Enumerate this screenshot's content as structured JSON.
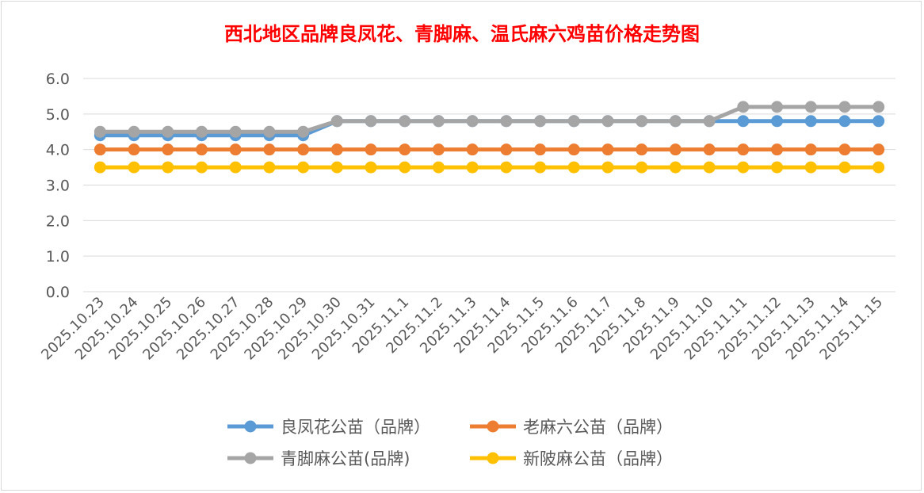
{
  "chart_data": {
    "type": "line",
    "title": "西北地区品牌良凤花、青脚麻、温氏麻六鸡苗价格走势图",
    "xlabel": "",
    "ylabel": "",
    "ylim": [
      0,
      6
    ],
    "yticks": [
      "0.0",
      "1.0",
      "2.0",
      "3.0",
      "4.0",
      "5.0",
      "6.0"
    ],
    "grid": true,
    "legend_position": "bottom",
    "categories": [
      "2025.10.23",
      "2025.10.24",
      "2025.10.25",
      "2025.10.26",
      "2025.10.27",
      "2025.10.28",
      "2025.10.29",
      "2025.10.30",
      "2025.10.31",
      "2025.11.1",
      "2025.11.2",
      "2025.11.3",
      "2025.11.4",
      "2025.11.5",
      "2025.11.6",
      "2025.11.7",
      "2025.11.8",
      "2025.11.9",
      "2025.11.10",
      "2025.11.11",
      "2025.11.12",
      "2025.11.13",
      "2025.11.14",
      "2025.11.15"
    ],
    "series": [
      {
        "name": "良凤花公苗（品牌）",
        "color": "#5b9bd5",
        "values": [
          4.4,
          4.4,
          4.4,
          4.4,
          4.4,
          4.4,
          4.4,
          4.8,
          4.8,
          4.8,
          4.8,
          4.8,
          4.8,
          4.8,
          4.8,
          4.8,
          4.8,
          4.8,
          4.8,
          4.8,
          4.8,
          4.8,
          4.8,
          4.8
        ]
      },
      {
        "name": "老麻六公苗（品牌）",
        "color": "#ed7d31",
        "values": [
          4.0,
          4.0,
          4.0,
          4.0,
          4.0,
          4.0,
          4.0,
          4.0,
          4.0,
          4.0,
          4.0,
          4.0,
          4.0,
          4.0,
          4.0,
          4.0,
          4.0,
          4.0,
          4.0,
          4.0,
          4.0,
          4.0,
          4.0,
          4.0
        ]
      },
      {
        "name": "青脚麻公苗(品牌)",
        "color": "#a5a5a5",
        "values": [
          4.5,
          4.5,
          4.5,
          4.5,
          4.5,
          4.5,
          4.5,
          4.8,
          4.8,
          4.8,
          4.8,
          4.8,
          4.8,
          4.8,
          4.8,
          4.8,
          4.8,
          4.8,
          4.8,
          5.2,
          5.2,
          5.2,
          5.2,
          5.2
        ]
      },
      {
        "name": "新陂麻公苗（品牌）",
        "color": "#ffc000",
        "values": [
          3.5,
          3.5,
          3.5,
          3.5,
          3.5,
          3.5,
          3.5,
          3.5,
          3.5,
          3.5,
          3.5,
          3.5,
          3.5,
          3.5,
          3.5,
          3.5,
          3.5,
          3.5,
          3.5,
          3.5,
          3.5,
          3.5,
          3.5,
          3.5
        ]
      }
    ]
  }
}
